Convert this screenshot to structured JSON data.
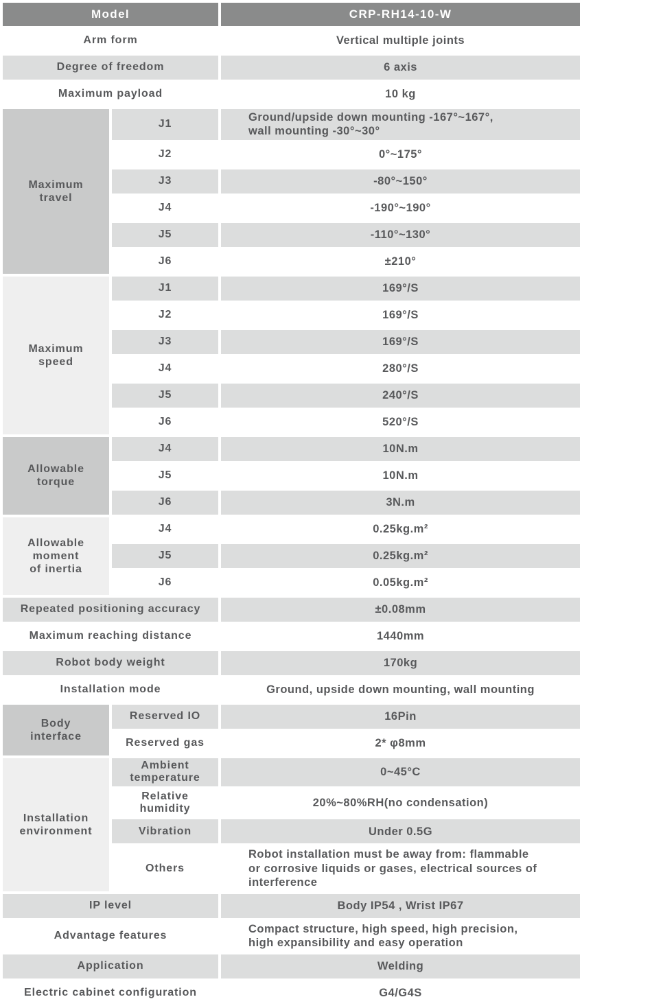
{
  "colors": {
    "header_bg": "#8a8b8b",
    "header_text": "#ffffff",
    "row_gray": "#dcdddd",
    "row_white": "#ffffff",
    "group_cell_dark": "#c9caca",
    "group_cell_light": "#efefef",
    "text": "#58595b"
  },
  "table": {
    "header": {
      "label": "Model",
      "value": "CRP-RH14-10-W"
    },
    "rows": [
      {
        "label": "Arm form",
        "value": "Vertical multiple joints",
        "shade": "white"
      },
      {
        "label": "Degree of freedom",
        "value": "6 axis",
        "shade": "gray"
      },
      {
        "label": "Maximum payload",
        "value": "10 kg",
        "shade": "white"
      },
      {
        "group": {
          "label": "Maximum\ntravel",
          "span": 6,
          "tone": "dark"
        },
        "label": "J1",
        "value": "Ground/upside down mounting -167°~167°,\nwall mounting -30°~30°",
        "shade": "gray"
      },
      {
        "label": "J2",
        "value": "0°~175°",
        "shade": "white"
      },
      {
        "label": "J3",
        "value": "-80°~150°",
        "shade": "gray"
      },
      {
        "label": "J4",
        "value": "-190°~190°",
        "shade": "white"
      },
      {
        "label": "J5",
        "value": "-110°~130°",
        "shade": "gray"
      },
      {
        "label": "J6",
        "value": "±210°",
        "shade": "white"
      },
      {
        "group": {
          "label": "Maximum\nspeed",
          "span": 6,
          "tone": "light"
        },
        "label": "J1",
        "value": "169°/S",
        "shade": "gray"
      },
      {
        "label": "J2",
        "value": "169°/S",
        "shade": "white"
      },
      {
        "label": "J3",
        "value": "169°/S",
        "shade": "gray"
      },
      {
        "label": "J4",
        "value": "280°/S",
        "shade": "white"
      },
      {
        "label": "J5",
        "value": "240°/S",
        "shade": "gray"
      },
      {
        "label": "J6",
        "value": "520°/S",
        "shade": "white"
      },
      {
        "group": {
          "label": "Allowable\ntorque",
          "span": 3,
          "tone": "dark"
        },
        "label": "J4",
        "value": "10N.m",
        "shade": "gray"
      },
      {
        "label": "J5",
        "value": "10N.m",
        "shade": "white"
      },
      {
        "label": "J6",
        "value": "3N.m",
        "shade": "gray"
      },
      {
        "group": {
          "label": "Allowable\nmoment\nof inertia",
          "span": 3,
          "tone": "light"
        },
        "label": "J4",
        "value": "0.25kg.m²",
        "shade": "white"
      },
      {
        "label": "J5",
        "value": "0.25kg.m²",
        "shade": "gray"
      },
      {
        "label": "J6",
        "value": "0.05kg.m²",
        "shade": "white"
      },
      {
        "label": "Repeated positioning accuracy",
        "value": "±0.08mm",
        "shade": "gray"
      },
      {
        "label": "Maximum reaching distance",
        "value": "1440mm",
        "shade": "white"
      },
      {
        "label": "Robot body weight",
        "value": "170kg",
        "shade": "gray"
      },
      {
        "label": "Installation mode",
        "value": "Ground, upside down mounting, wall mounting",
        "shade": "white"
      },
      {
        "group": {
          "label": "Body\ninterface",
          "span": 2,
          "tone": "dark"
        },
        "label": "Reserved IO",
        "value": "16Pin",
        "shade": "gray"
      },
      {
        "label": "Reserved gas",
        "value": "2* φ8mm",
        "shade": "white"
      },
      {
        "group": {
          "label": "Installation\nenvironment",
          "span": 4,
          "tone": "light"
        },
        "label": "Ambient\ntemperature",
        "value": "0~45°C",
        "shade": "gray"
      },
      {
        "label": "Relative\nhumidity",
        "value": "20%~80%RH(no condensation)",
        "shade": "white"
      },
      {
        "label": "Vibration",
        "value": "Under 0.5G",
        "shade": "gray"
      },
      {
        "label": "Others",
        "value": "Robot installation must be away from: flammable\nor corrosive liquids or gases, electrical sources of\ninterference",
        "shade": "white"
      },
      {
        "label": "IP level",
        "value": "Body IP54 , Wrist IP67",
        "shade": "gray"
      },
      {
        "label": "Advantage features",
        "value": "Compact structure, high speed, high precision,\nhigh expansibility and easy operation",
        "shade": "white"
      },
      {
        "label": "Application",
        "value": "Welding",
        "shade": "gray"
      },
      {
        "label": "Electric cabinet configuration",
        "value": "G4/G4S",
        "shade": "white"
      }
    ]
  }
}
